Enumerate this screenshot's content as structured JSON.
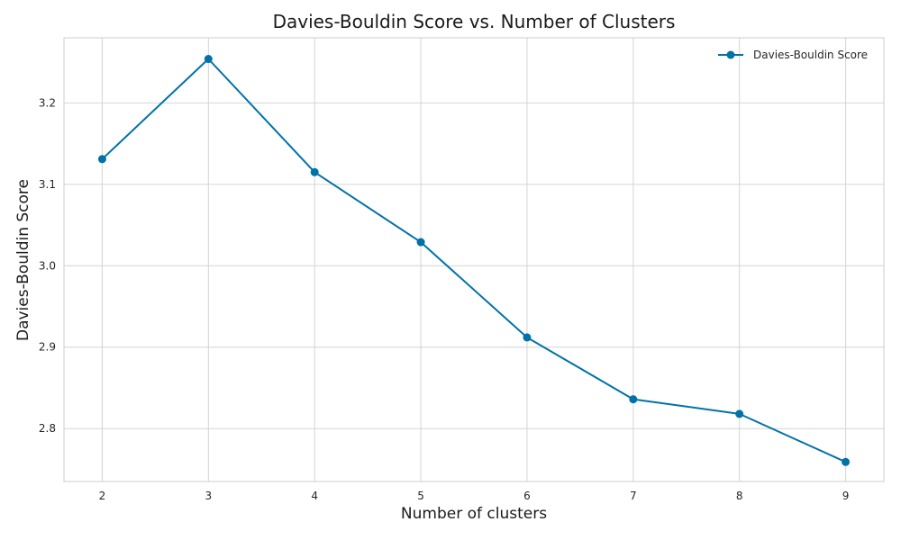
{
  "chart_data": {
    "type": "line",
    "title": "Davies-Bouldin Score vs. Number of Clusters",
    "xlabel": "Number of clusters",
    "ylabel": "Davies-Bouldin Score",
    "x": [
      2,
      3,
      4,
      5,
      6,
      7,
      8,
      9
    ],
    "x_ticks": [
      "2",
      "3",
      "4",
      "5",
      "6",
      "7",
      "8",
      "9"
    ],
    "y_ticks": [
      "2.8",
      "2.9",
      "3.0",
      "3.1",
      "3.2"
    ],
    "y_tick_values": [
      2.8,
      2.9,
      3.0,
      3.1,
      3.2
    ],
    "xlim": [
      1.64,
      9.36
    ],
    "ylim": [
      2.735,
      3.28
    ],
    "grid": true,
    "legend_position": "top-right",
    "series": [
      {
        "name": "Davies-Bouldin Score",
        "values": [
          3.131,
          3.254,
          3.115,
          3.029,
          2.912,
          2.836,
          2.818,
          2.759
        ],
        "color": "#0072a8",
        "marker": "circle"
      }
    ]
  }
}
